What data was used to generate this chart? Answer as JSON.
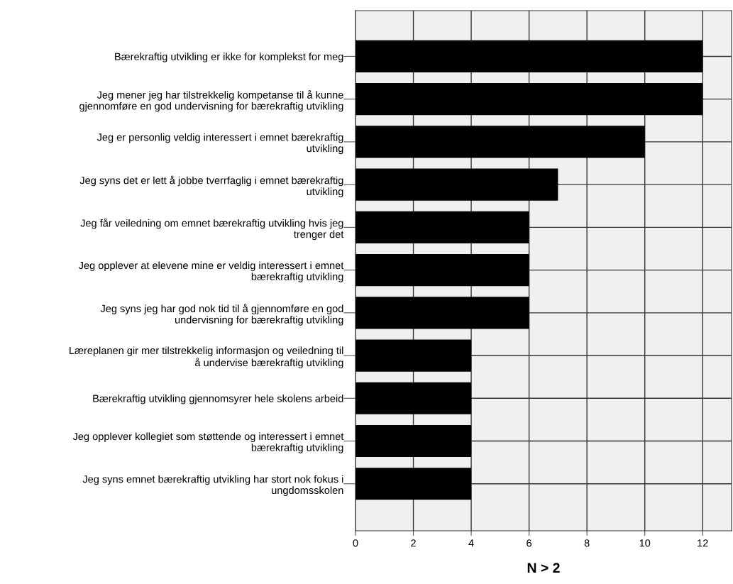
{
  "chart_data": {
    "type": "bar",
    "orientation": "horizontal",
    "xlabel": "N > 2",
    "categories": [
      "Bærekraftig utvikling er ikke for komplekst for meg",
      "Jeg mener jeg har tilstrekkelig kompetanse til å kunne\ngjennomføre en god undervisning for bærekraftig utvikling",
      "Jeg er personlig veldig interessert i emnet bærekraftig\nutvikling",
      "Jeg syns det er lett å jobbe tverrfaglig i emnet bærekraftig\nutvikling",
      "Jeg får veiledning om emnet bærekraftig utvikling hvis jeg\ntrenger det",
      "Jeg opplever at elevene mine er veldig interessert i emnet\nbærekraftig utvikling",
      "Jeg syns jeg har god nok tid til å gjennomføre en god\nundervisning for bærekraftig utvikling",
      "Læreplanen gir mer tilstrekkelig informasjon og veiledning til\nå undervise bærekraftig utvikling",
      "Bærekraftig utvikling gjennomsyrer hele skolens arbeid",
      "Jeg opplever kollegiet som støttende og interessert i emnet\nbærekraftig utvikling",
      "Jeg syns emnet bærekraftig utvikling har stort nok fokus i\nungdomsskolen"
    ],
    "values": [
      12,
      12,
      10,
      7,
      6,
      6,
      6,
      4,
      4,
      4,
      4
    ],
    "color": "#000000",
    "xlim": [
      0,
      13
    ],
    "xticks": [
      0,
      2,
      4,
      6,
      8,
      10,
      12
    ],
    "grid": true
  }
}
